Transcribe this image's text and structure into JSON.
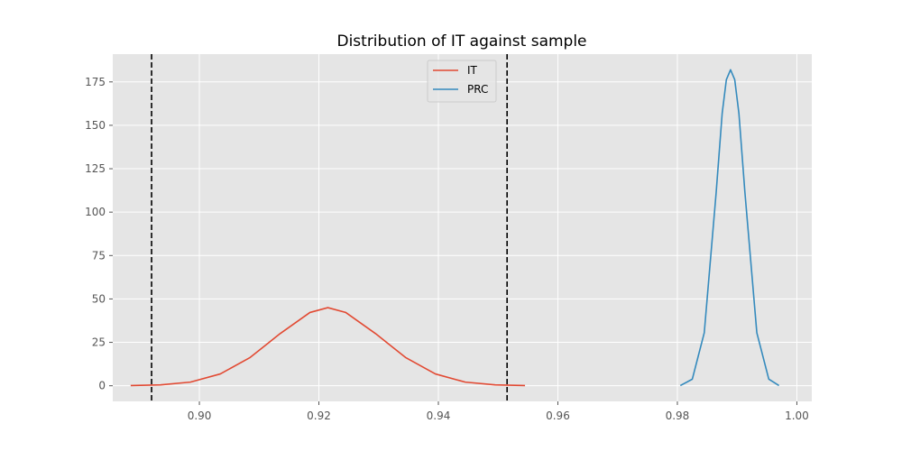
{
  "chart_data": {
    "type": "line",
    "title": "Distribution of IT against sample",
    "xlabel": "",
    "ylabel": "",
    "xlim": [
      0.8855,
      1.0025
    ],
    "ylim": [
      -9,
      191
    ],
    "x_ticks": [
      0.9,
      0.92,
      0.94,
      0.96,
      0.98,
      1.0
    ],
    "x_tick_labels": [
      "0.90",
      "0.92",
      "0.94",
      "0.96",
      "0.98",
      "1.00"
    ],
    "y_ticks": [
      0,
      25,
      50,
      75,
      100,
      125,
      150,
      175
    ],
    "y_tick_labels": [
      "0",
      "25",
      "50",
      "75",
      "100",
      "125",
      "150",
      "175"
    ],
    "grid": true,
    "background": "#e5e5e5",
    "legend_position": "top-center",
    "series": [
      {
        "name": "IT",
        "color": "#e24a33",
        "x": [
          0.8885,
          0.8935,
          0.8985,
          0.9035,
          0.9085,
          0.9135,
          0.9185,
          0.9215,
          0.9245,
          0.9295,
          0.9345,
          0.9395,
          0.9445,
          0.9495,
          0.9545
        ],
        "y": [
          0.1,
          0.5,
          2.1,
          6.8,
          16.3,
          30.0,
          42.2,
          45.0,
          42.2,
          30.0,
          16.3,
          6.8,
          2.1,
          0.5,
          0.1
        ]
      },
      {
        "name": "PRC",
        "color": "#348abd",
        "x": [
          0.9805,
          0.9825,
          0.9845,
          0.9865,
          0.9875,
          0.9882,
          0.9889,
          0.9896,
          0.9903,
          0.9913,
          0.9933,
          0.9953,
          0.997
        ],
        "y": [
          0.1,
          3.8,
          30.5,
          111.6,
          156.9,
          176.3,
          182.0,
          176.3,
          156.9,
          111.6,
          30.5,
          3.8,
          0.1
        ]
      }
    ],
    "vlines": [
      {
        "x": 0.892,
        "color": "#000000",
        "style": "dashed"
      },
      {
        "x": 0.9515,
        "color": "#000000",
        "style": "dashed"
      }
    ]
  }
}
